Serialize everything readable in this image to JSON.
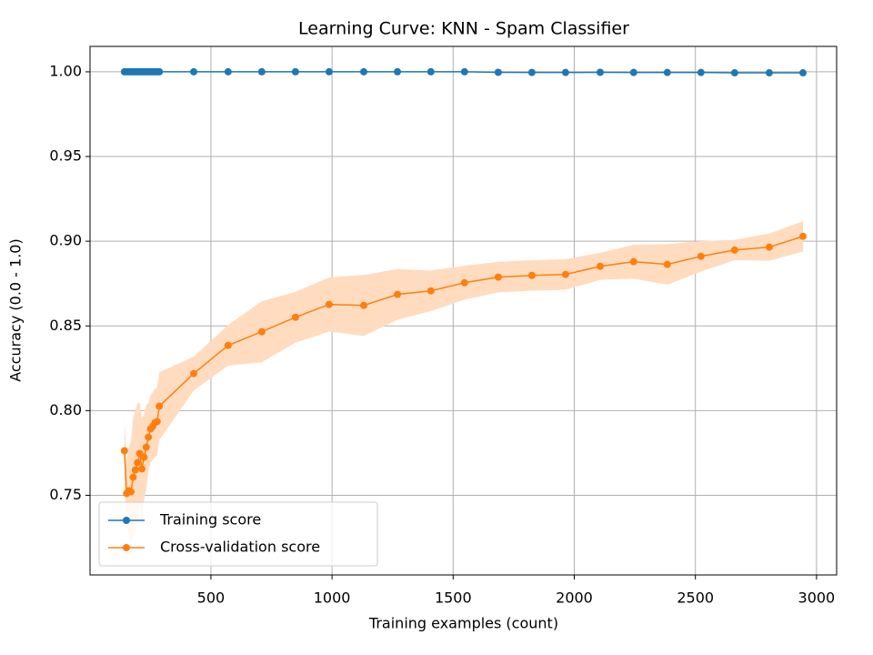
{
  "chart_data": {
    "type": "line",
    "title": "Learning Curve: KNN - Spam Classifier",
    "x_label": "Training examples (count)",
    "y_label": "Accuracy (0.0 - 1.0)",
    "x": [
      143,
      152,
      161,
      170,
      179,
      188,
      197,
      206,
      215,
      224,
      233,
      242,
      251,
      260,
      269,
      278,
      287,
      429,
      571,
      710,
      849,
      988,
      1131,
      1270,
      1408,
      1547,
      1686,
      1825,
      1964,
      2107,
      2245,
      2384,
      2523,
      2662,
      2805,
      2944
    ],
    "series": [
      {
        "name": "Training score",
        "color": "#1f77b4",
        "values": [
          1.0,
          1.0,
          1.0,
          1.0,
          1.0,
          1.0,
          1.0,
          1.0,
          1.0,
          1.0,
          1.0,
          1.0,
          1.0,
          1.0,
          1.0,
          1.0,
          1.0,
          1.0,
          1.0,
          1.0,
          1.0,
          1.0,
          1.0,
          1.0,
          1.0,
          1.0,
          0.9997,
          0.9996,
          0.9996,
          0.9997,
          0.9996,
          0.9996,
          0.9996,
          0.9994,
          0.9994,
          0.9994
        ]
      },
      {
        "name": "Cross-validation score",
        "color": "#ff7f0e",
        "values": [
          0.7763,
          0.7511,
          0.7527,
          0.7521,
          0.7607,
          0.765,
          0.7693,
          0.7747,
          0.7656,
          0.7725,
          0.7784,
          0.7843,
          0.7892,
          0.7908,
          0.7929,
          0.7935,
          0.8026,
          0.8219,
          0.8385,
          0.8466,
          0.8551,
          0.8627,
          0.8621,
          0.8686,
          0.8707,
          0.8755,
          0.8788,
          0.8798,
          0.8804,
          0.8852,
          0.8879,
          0.8863,
          0.8911,
          0.8948,
          0.8965,
          0.9029
        ],
        "std": [
          0.018,
          0.02,
          0.025,
          0.03,
          0.035,
          0.035,
          0.035,
          0.03,
          0.03,
          0.025,
          0.025,
          0.02,
          0.02,
          0.02,
          0.02,
          0.02,
          0.02,
          0.01,
          0.012,
          0.018,
          0.015,
          0.016,
          0.018,
          0.015,
          0.012,
          0.01,
          0.009,
          0.009,
          0.009,
          0.008,
          0.01,
          0.012,
          0.009,
          0.006,
          0.008,
          0.009
        ],
        "band_color": "#ffdcc0"
      }
    ],
    "xlim": [
      1,
      3083
    ],
    "ylim": [
      0.703,
      1.015
    ],
    "xticks": [
      500,
      1000,
      1500,
      2000,
      2500,
      3000
    ],
    "yticks": [
      0.75,
      {
        "value": 0.8,
        "label": "0.80"
      },
      0.85,
      {
        "value": 0.9,
        "label": "0.90"
      },
      0.95,
      {
        "value": 1.0,
        "label": "1.00"
      }
    ],
    "grid": true,
    "legend": "lower left"
  }
}
